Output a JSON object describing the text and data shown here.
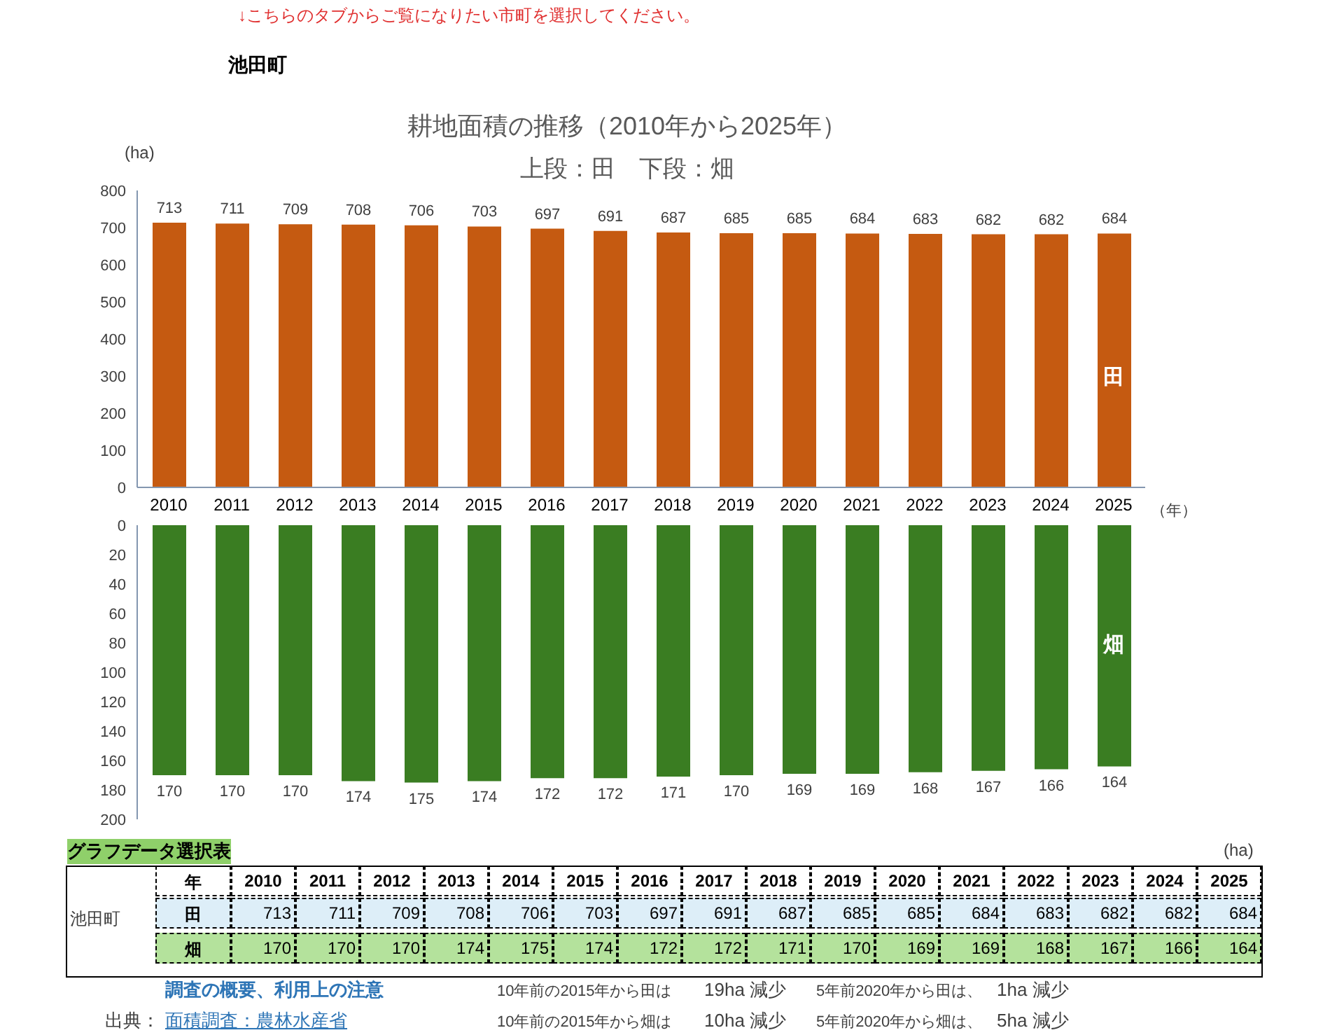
{
  "chart_data": [
    {
      "type": "bar",
      "title": "耕地面積の推移（2010年から2025年）",
      "subtitle": "上段：田　下段：畑",
      "ylabel": "(ha)",
      "xlabel": "（年）",
      "categories": [
        "2010",
        "2011",
        "2012",
        "2013",
        "2014",
        "2015",
        "2016",
        "2017",
        "2018",
        "2019",
        "2020",
        "2021",
        "2022",
        "2023",
        "2024",
        "2025"
      ],
      "series": [
        {
          "name": "田",
          "color": "#c55a11",
          "values": [
            713,
            711,
            709,
            708,
            706,
            703,
            697,
            691,
            687,
            685,
            685,
            684,
            683,
            682,
            682,
            684
          ]
        }
      ],
      "ylim": [
        0,
        800
      ],
      "yticks": [
        0,
        100,
        200,
        300,
        400,
        500,
        600,
        700,
        800
      ],
      "data_labels": true,
      "annotations": [
        "↓こちらのタブからご覧になりたい市町を選択してください。",
        "池田町"
      ]
    },
    {
      "type": "bar",
      "tick_labels": "y",
      "categories": [
        "2010",
        "2011",
        "2012",
        "2013",
        "2014",
        "2015",
        "2016",
        "2017",
        "2018",
        "2019",
        "2020",
        "2021",
        "2022",
        "2023",
        "2024",
        "2025"
      ],
      "series": [
        {
          "name": "畑",
          "color": "#3a7d22",
          "values": [
            170,
            170,
            170,
            174,
            175,
            174,
            172,
            172,
            171,
            170,
            169,
            169,
            168,
            167,
            166,
            164
          ]
        }
      ],
      "ylim": [
        200,
        0
      ],
      "yticks": [
        0,
        20,
        40,
        60,
        80,
        100,
        120,
        140,
        160,
        180,
        200
      ],
      "data_labels": true
    },
    {
      "type": "heatmap",
      "categories": [
        "2010",
        "2011",
        "2012",
        "2013",
        "2014",
        "2015",
        "2016",
        "2017",
        "2018",
        "2019",
        "2020",
        "2021",
        "2022",
        "2023",
        "2024",
        "2025"
      ],
      "y_categories": [
        "田",
        "畑"
      ],
      "colors": [
        "#ddeef8",
        "#b4e29c"
      ],
      "cells": [
        [
          713,
          711,
          709,
          708,
          706,
          703,
          697,
          691,
          687,
          685,
          685,
          684,
          683,
          682,
          682,
          684
        ],
        [
          170,
          170,
          170,
          174,
          175,
          174,
          172,
          172,
          171,
          170,
          169,
          169,
          168,
          167,
          166,
          164
        ]
      ],
      "data_labels": true,
      "annotations": [
        "グラフデータ選択表",
        "(ha)",
        "年",
        "池田町",
        "調査の概要、利用上の注意",
        "出典：",
        "面積調査：農林水産省",
        "10年前の2015年から田は",
        "19ha 減少",
        "5年前2020年から田は、",
        "1ha 減少",
        "10年前の2015年から畑は",
        "10ha 減少",
        "5年前2020年から畑は、",
        "5ha 減少"
      ]
    }
  ]
}
